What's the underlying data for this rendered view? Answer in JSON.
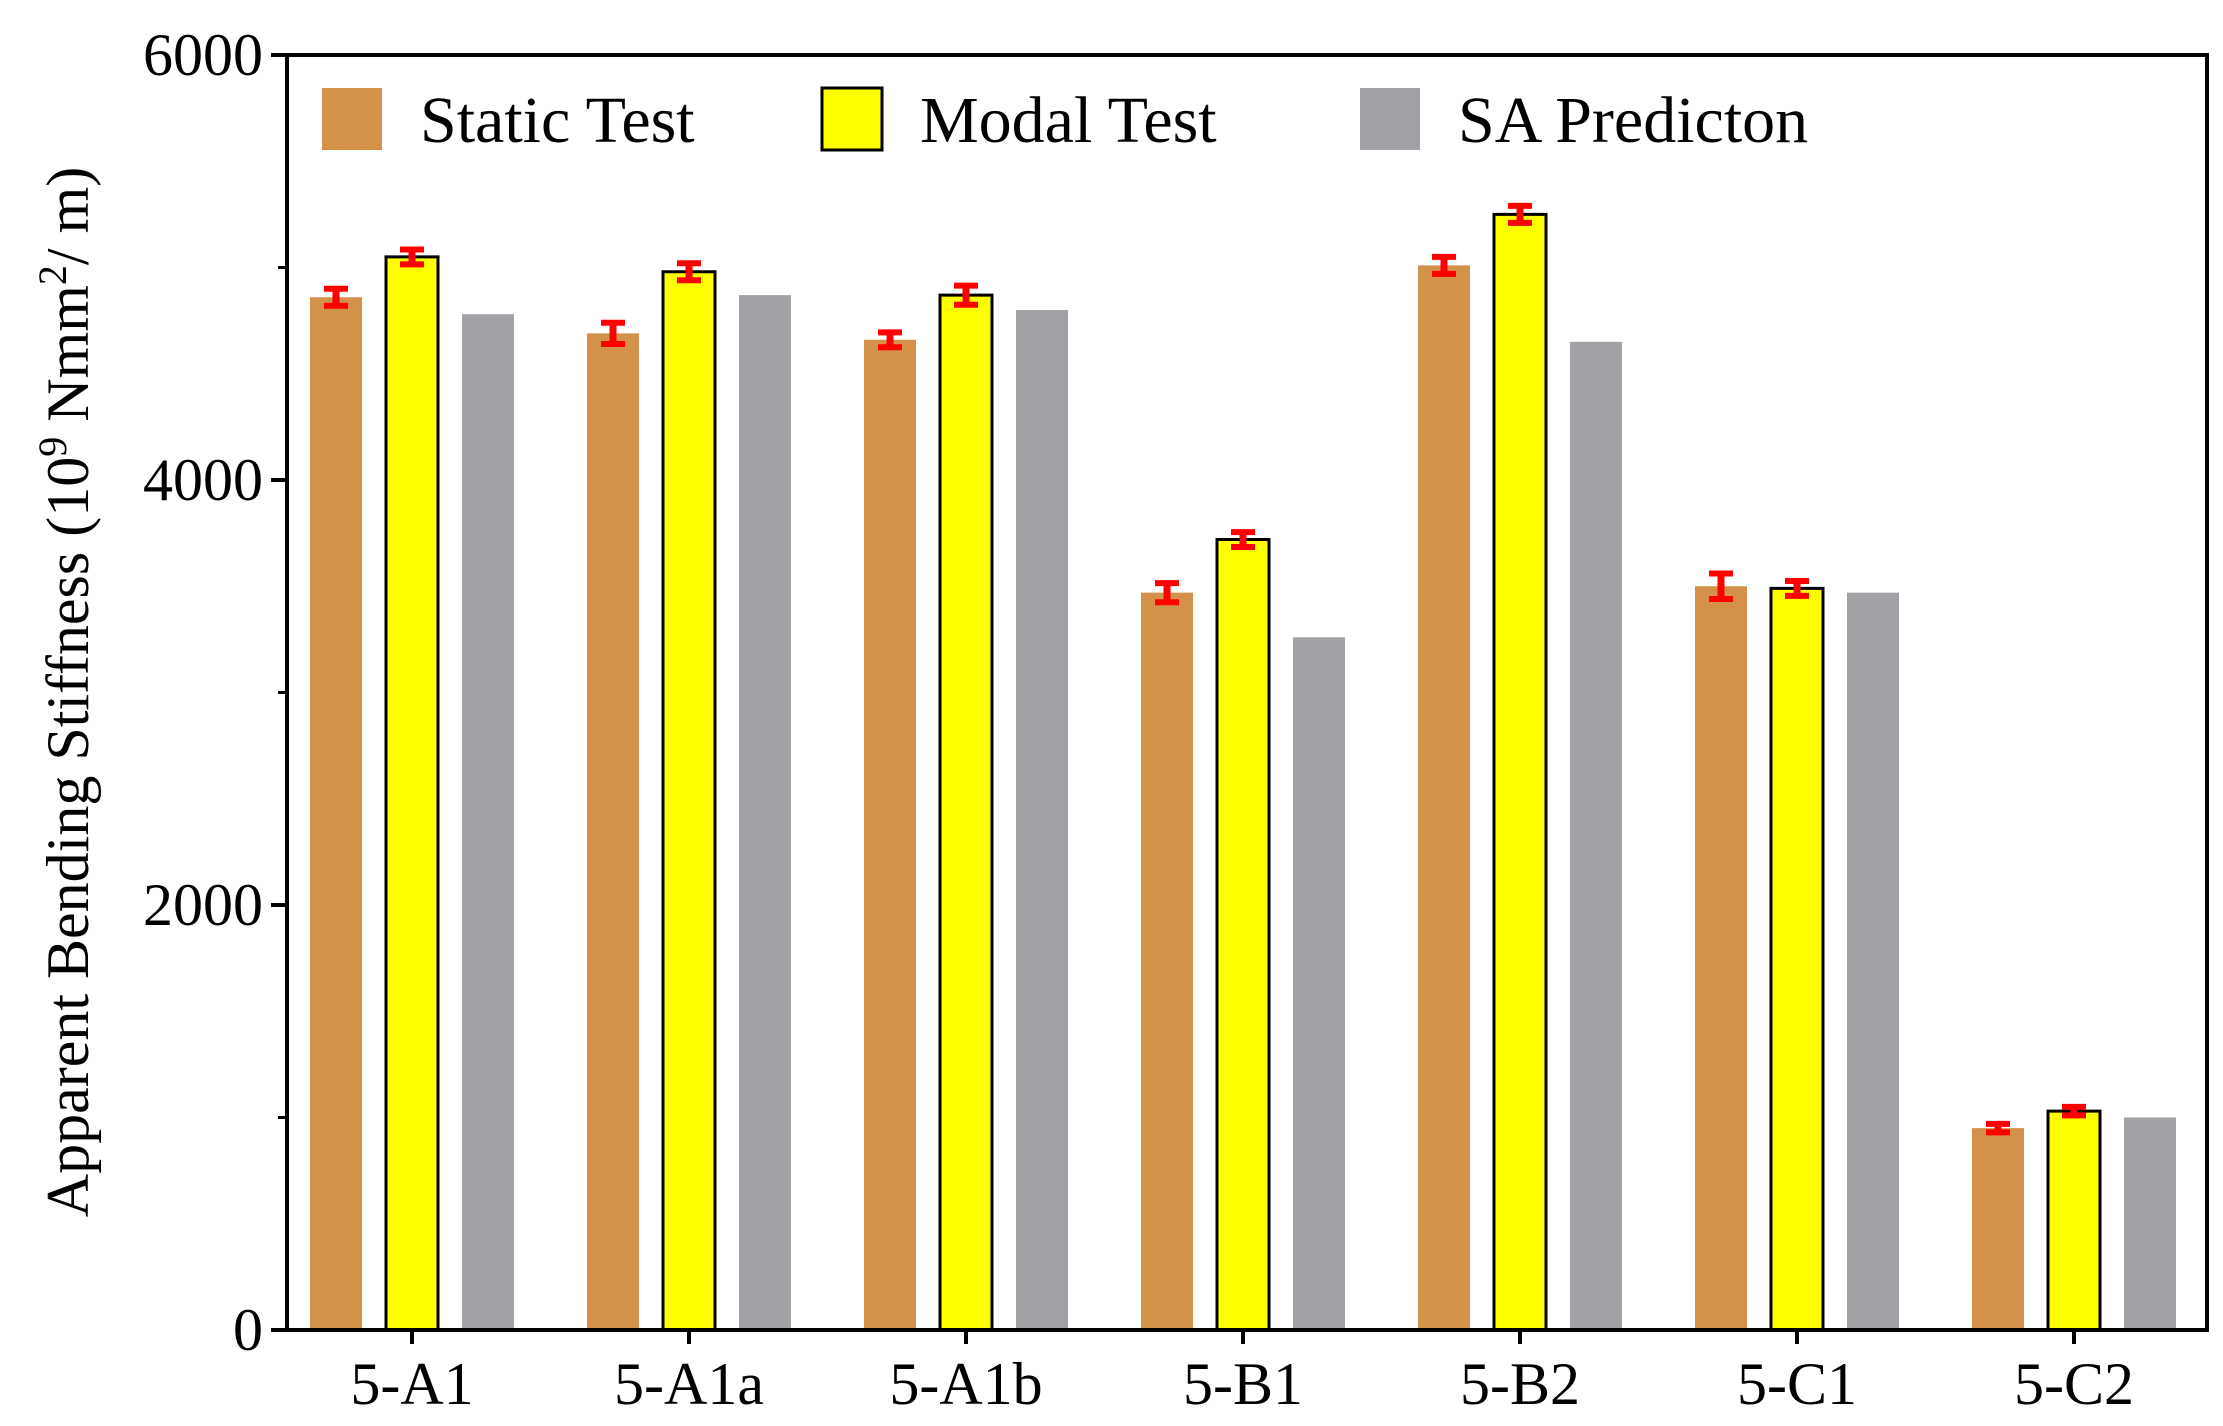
{
  "chart_data": {
    "type": "bar",
    "title": "",
    "xlabel": "",
    "ylabel": {
      "prefix": "Apparent Bending Stiffness (10",
      "exp1": "9",
      "middle": " Nmm",
      "exp2": "2",
      "suffix": "/ m)"
    },
    "ylim": [
      0,
      6000
    ],
    "yticks": [
      0,
      2000,
      4000,
      6000
    ],
    "grid": false,
    "legend_position": "top",
    "categories": [
      "5-A1",
      "5-A1a",
      "5-A1b",
      "5-B1",
      "5-B2",
      "5-C1",
      "5-C2"
    ],
    "series": [
      {
        "name": "Static Test",
        "color": "#D4914A",
        "values": [
          4860,
          4690,
          4660,
          3470,
          5010,
          3500,
          950
        ],
        "errors": [
          40,
          50,
          35,
          45,
          40,
          60,
          20
        ],
        "outlined": false
      },
      {
        "name": "Modal Test",
        "color": "#FFFF00",
        "values": [
          5050,
          4980,
          4870,
          3720,
          5250,
          3490,
          1030
        ],
        "errors": [
          35,
          40,
          45,
          35,
          40,
          35,
          20
        ],
        "outlined": true
      },
      {
        "name": "SA Predicton",
        "color": "#A2A1A6",
        "values": [
          4780,
          4870,
          4800,
          3260,
          4650,
          3470,
          1000
        ],
        "outlined": false
      }
    ],
    "error_bar_color": "#FF0000"
  }
}
